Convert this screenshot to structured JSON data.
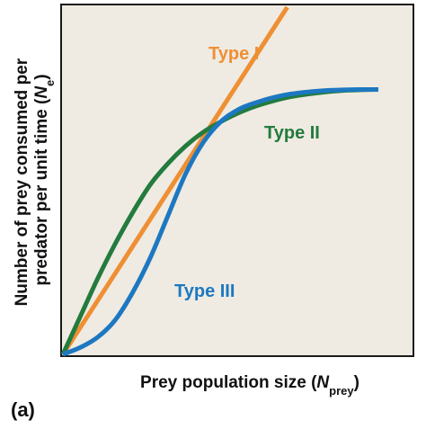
{
  "chart_data": {
    "type": "line",
    "panel_label": "(a)",
    "xlabel": {
      "main": "Prey population size (",
      "var": "N",
      "sub": "prey",
      "close": ")"
    },
    "ylabel": {
      "line1": "Number of prey consumed per",
      "line2_main": "predator per unit time (",
      "line2_var": "N",
      "line2_sub": "e",
      "line2_close": ")"
    },
    "xlim": [
      0,
      100
    ],
    "ylim": [
      0,
      100
    ],
    "grid": false,
    "background_color": "#efebe2",
    "series": [
      {
        "name": "Type I",
        "color": "#ef8f34",
        "x": [
          0,
          64
        ],
        "y": [
          0,
          100
        ]
      },
      {
        "name": "Type II",
        "color": "#237b3e",
        "x": [
          0,
          5,
          10,
          15,
          20,
          25,
          30,
          35,
          40,
          45,
          50,
          55,
          60,
          65,
          70,
          75,
          80,
          85,
          90
        ],
        "y": [
          0,
          11,
          22,
          32,
          41,
          49,
          55,
          60,
          64,
          67,
          69.5,
          71.5,
          73,
          74.2,
          75,
          75.6,
          76,
          76.2,
          76.3
        ]
      },
      {
        "name": "Type III",
        "color": "#1d78c1",
        "x": [
          0,
          5,
          10,
          15,
          20,
          25,
          30,
          35,
          40,
          45,
          50,
          55,
          60,
          65,
          70,
          75,
          80,
          85,
          90
        ],
        "y": [
          0,
          2,
          5,
          10,
          18,
          28,
          40,
          52,
          61,
          67,
          70.5,
          72.5,
          74,
          75,
          75.6,
          76,
          76.2,
          76.3,
          76.3
        ]
      }
    ]
  }
}
